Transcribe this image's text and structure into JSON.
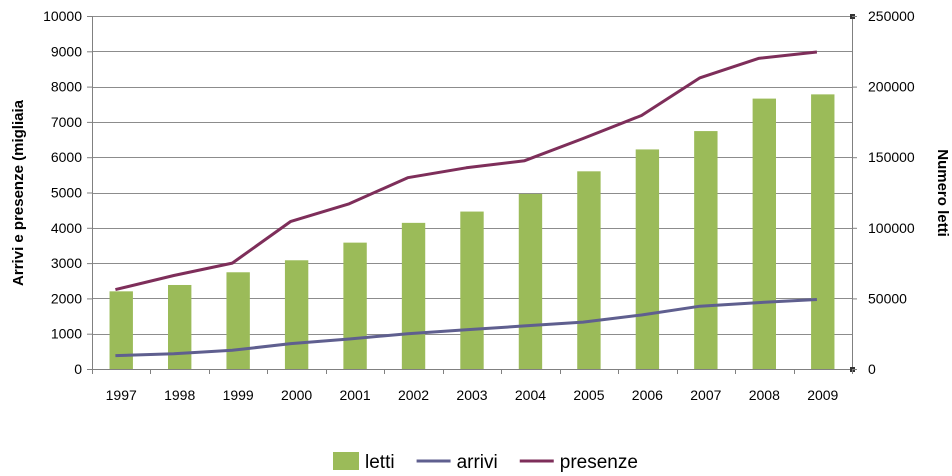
{
  "chart_data": {
    "type": "bar",
    "categories": [
      "1997",
      "1998",
      "1999",
      "2000",
      "2001",
      "2002",
      "2003",
      "2004",
      "2005",
      "2006",
      "2007",
      "2008",
      "2009"
    ],
    "y_left": {
      "label": "Arrivi e presenze (migliaia",
      "range": [
        0,
        10000
      ],
      "ticks": [
        "0",
        "1000",
        "2000",
        "3000",
        "4000",
        "5000",
        "6000",
        "7000",
        "8000",
        "9000",
        "10000"
      ]
    },
    "y_right": {
      "label": "Numero letti",
      "range": [
        0,
        250000
      ],
      "ticks": [
        "0",
        "50000",
        "100000",
        "150000",
        "200000",
        "250000"
      ]
    },
    "series": [
      {
        "name": "letti",
        "type": "bar",
        "axis": "right",
        "color": "#9BBB59",
        "values": [
          55000,
          59500,
          68500,
          77000,
          89500,
          103500,
          111500,
          124000,
          140000,
          155500,
          168500,
          191500,
          194500
        ]
      },
      {
        "name": "arrivi",
        "type": "line",
        "axis": "left",
        "color": "#5F5F8F",
        "values": [
          380,
          430,
          530,
          720,
          850,
          1000,
          1110,
          1220,
          1330,
          1530,
          1780,
          1880,
          1970
        ]
      },
      {
        "name": "presenze",
        "type": "line",
        "axis": "left",
        "color": "#7E2E5A",
        "values": [
          2250,
          2650,
          3000,
          4180,
          4680,
          5420,
          5700,
          5900,
          6530,
          7180,
          8250,
          8800,
          8980
        ]
      }
    ],
    "grid": true,
    "legend": "bottom-center"
  }
}
